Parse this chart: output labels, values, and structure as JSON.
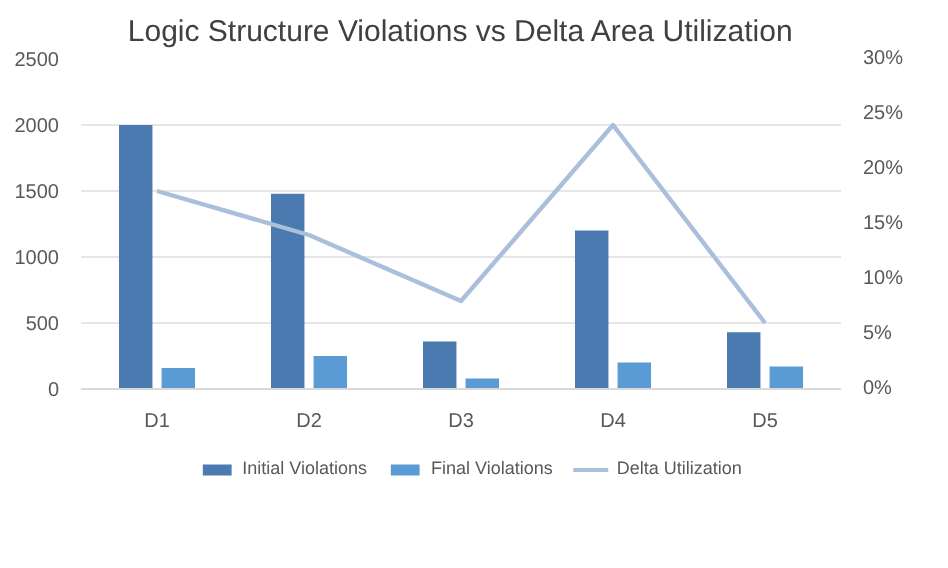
{
  "chart_data": {
    "type": "bar",
    "title": "Logic Structure Violations vs Delta Area Utilization",
    "categories": [
      "D1",
      "D2",
      "D3",
      "D4",
      "D5"
    ],
    "series": [
      {
        "name": "Initial Violations",
        "color": "#4a7ab0",
        "values": [
          2000,
          1480,
          360,
          1200,
          430
        ]
      },
      {
        "name": "Final Violations",
        "color": "#5b9bd5",
        "values": [
          160,
          250,
          80,
          200,
          170
        ]
      },
      {
        "name": "Delta Utilization",
        "type": "line",
        "axis": "y2",
        "color": "#a9bfdc",
        "values": [
          18,
          14,
          8,
          24,
          6
        ]
      }
    ],
    "ylim": [
      0,
      2500
    ],
    "yticks": [
      0,
      500,
      1000,
      1500,
      2000,
      2500
    ],
    "y2lim": [
      0,
      30
    ],
    "y2ticks": [
      {
        "value": 0,
        "label": "0%"
      },
      {
        "value": 5,
        "label": "5%"
      },
      {
        "value": 10,
        "label": "10%"
      },
      {
        "value": 15,
        "label": "15%"
      },
      {
        "value": 20,
        "label": "20%"
      },
      {
        "value": 25,
        "label": "25%"
      },
      {
        "value": 30,
        "label": "30%"
      }
    ],
    "grid": "y",
    "legend": "bottom"
  }
}
